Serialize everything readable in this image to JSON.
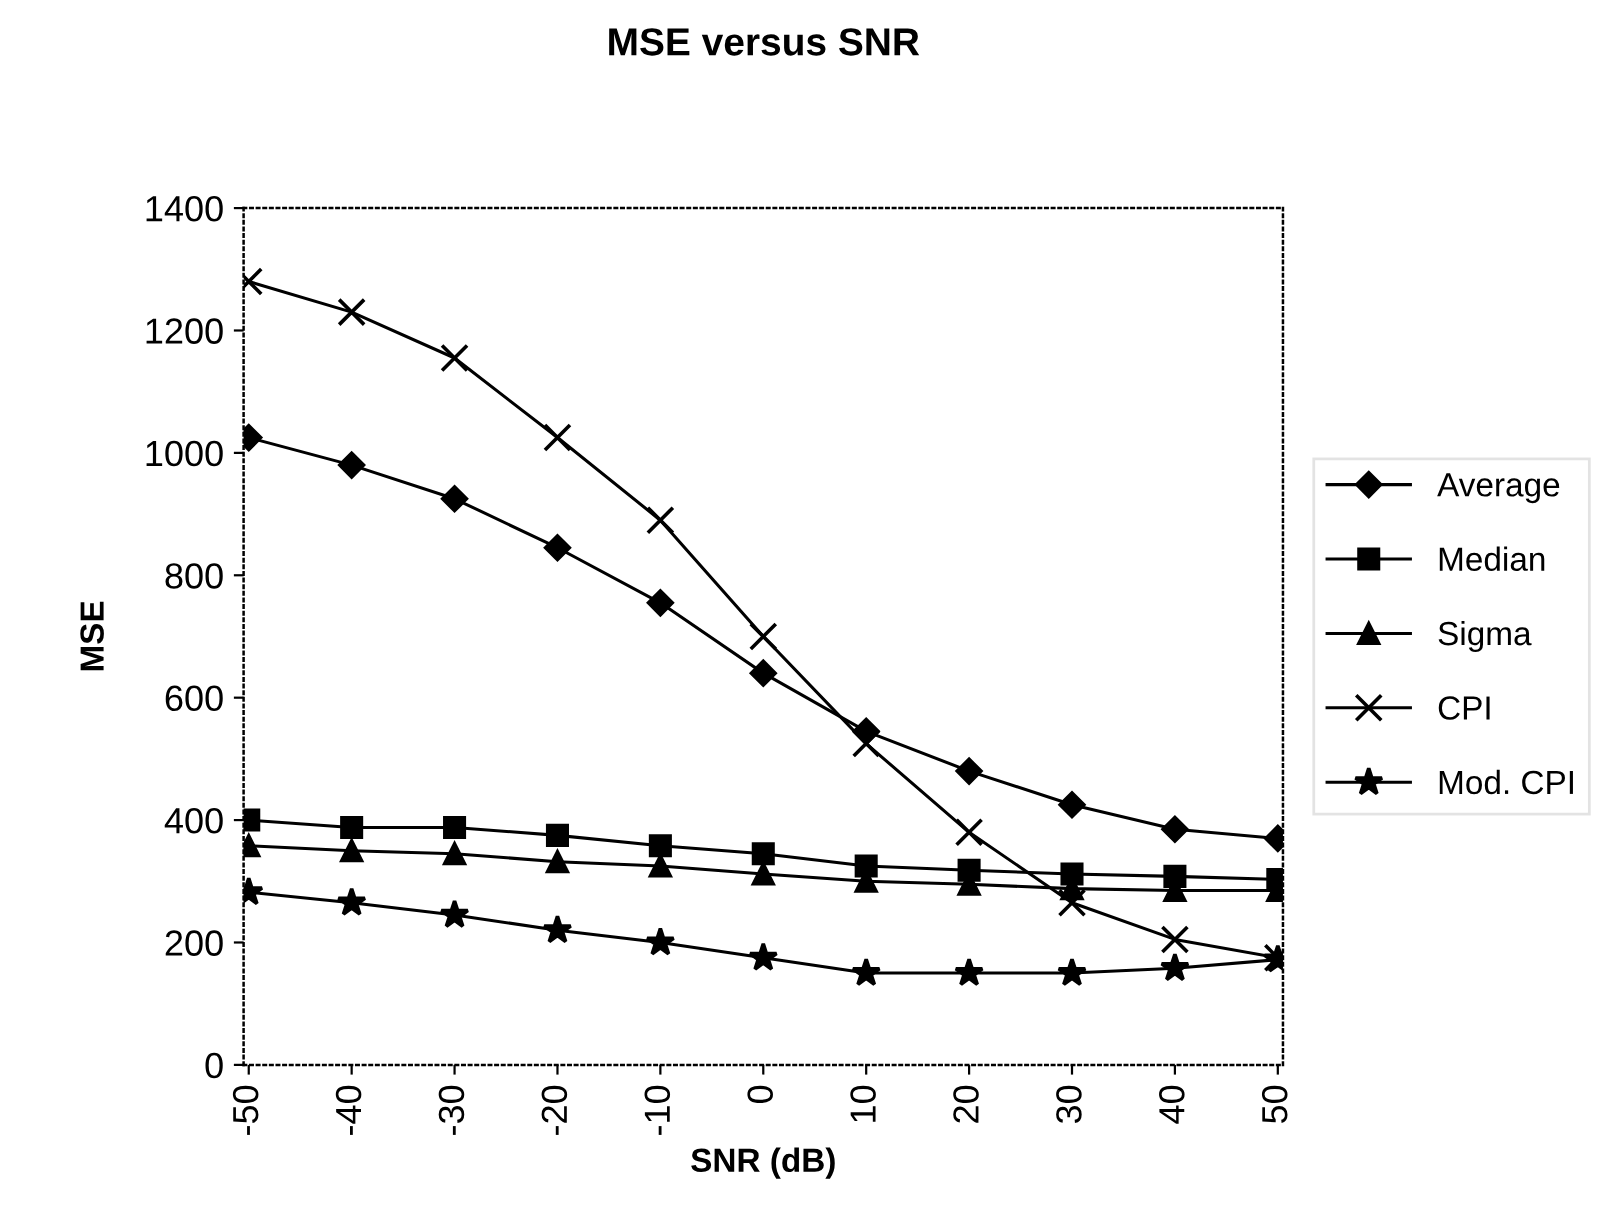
{
  "chart_data": {
    "type": "line",
    "title": "MSE versus SNR",
    "xlabel": "SNR (dB)",
    "ylabel": "MSE",
    "categories": [
      "-50",
      "-40",
      "-30",
      "-20",
      "-10",
      "0",
      "10",
      "20",
      "30",
      "40",
      "50"
    ],
    "ylim": [
      0,
      1400
    ],
    "yticks": [
      0,
      200,
      400,
      600,
      800,
      1000,
      1200,
      1400
    ],
    "grid": false,
    "legend": "right",
    "line_style": "solid",
    "series": [
      {
        "name": "Average",
        "color": "#000000",
        "marker": "diamond",
        "values": [
          1025,
          980,
          925,
          845,
          755,
          640,
          545,
          480,
          425,
          385,
          370
        ]
      },
      {
        "name": "Median",
        "color": "#000000",
        "marker": "square",
        "values": [
          400,
          388,
          388,
          375,
          358,
          345,
          325,
          318,
          312,
          308,
          303
        ]
      },
      {
        "name": "Sigma",
        "color": "#000000",
        "marker": "triangle",
        "values": [
          358,
          350,
          345,
          332,
          325,
          312,
          300,
          295,
          288,
          285,
          285
        ]
      },
      {
        "name": "CPI",
        "color": "#000000",
        "marker": "cross",
        "values": [
          1280,
          1230,
          1155,
          1025,
          890,
          700,
          525,
          380,
          265,
          205,
          175
        ]
      },
      {
        "name": "Mod. CPI",
        "color": "#000000",
        "marker": "star",
        "values": [
          282,
          265,
          245,
          220,
          200,
          175,
          150,
          150,
          150,
          158,
          172
        ]
      }
    ]
  }
}
